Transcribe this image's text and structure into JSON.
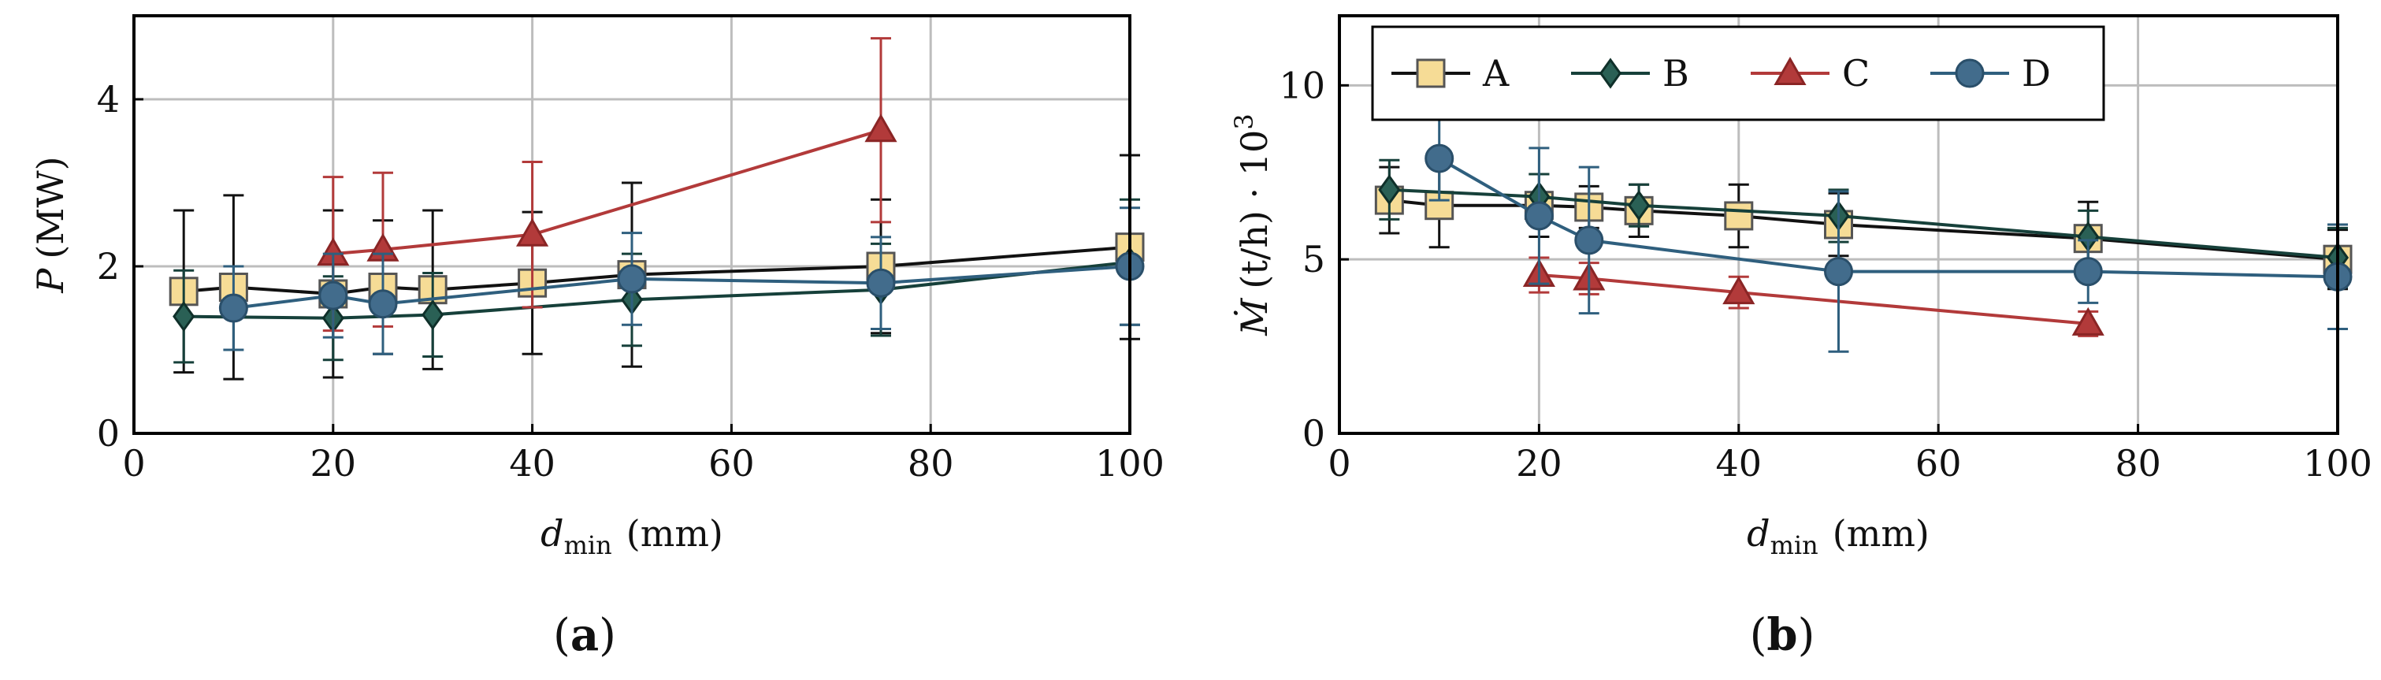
{
  "chart_data": [
    {
      "panel": "(a)",
      "panel_letter": "a",
      "type": "line",
      "xlabel": {
        "var": "d",
        "sub": "min",
        "unit": "(mm)"
      },
      "ylabel": {
        "var": "P",
        "unit": "(MW)"
      },
      "xlim": [
        0,
        100
      ],
      "ylim": [
        0,
        5
      ],
      "xticks": [
        0,
        20,
        40,
        60,
        80,
        100
      ],
      "yticks": [
        0,
        2,
        4
      ],
      "grid": true,
      "legend": false,
      "series": [
        {
          "name": "A",
          "x": [
            5,
            10,
            20,
            25,
            30,
            40,
            50,
            75,
            100
          ],
          "y": [
            1.7,
            1.75,
            1.67,
            1.75,
            1.72,
            1.8,
            1.9,
            2.0,
            2.23
          ],
          "err": [
            0.97,
            1.1,
            1.0,
            0.8,
            0.95,
            0.85,
            1.1,
            0.8,
            1.1
          ]
        },
        {
          "name": "B",
          "x": [
            5,
            20,
            30,
            50,
            75,
            100
          ],
          "y": [
            1.4,
            1.38,
            1.42,
            1.6,
            1.72,
            2.05
          ],
          "err": [
            0.55,
            0.5,
            0.5,
            0.55,
            0.55,
            0.75
          ]
        },
        {
          "name": "C",
          "x": [
            20,
            25,
            40,
            75
          ],
          "y": [
            2.15,
            2.2,
            2.38,
            3.63
          ],
          "err": [
            0.92,
            0.92,
            0.87,
            1.1
          ]
        },
        {
          "name": "D",
          "x": [
            10,
            20,
            25,
            50,
            75,
            100
          ],
          "y": [
            1.5,
            1.65,
            1.55,
            1.85,
            1.8,
            2.0
          ],
          "err": [
            0.5,
            0.5,
            0.6,
            0.55,
            0.55,
            0.7
          ]
        }
      ]
    },
    {
      "panel": "(b)",
      "panel_letter": "b",
      "type": "line",
      "xlabel": {
        "var": "d",
        "sub": "min",
        "unit": "(mm)"
      },
      "ylabel": {
        "var": "Ṁ",
        "unit": "(t/h) · 10",
        "exp": "3"
      },
      "xlim": [
        0,
        100
      ],
      "ylim": [
        0,
        12
      ],
      "xticks": [
        0,
        20,
        40,
        60,
        80,
        100
      ],
      "yticks": [
        0,
        5,
        10
      ],
      "grid": true,
      "legend": true,
      "legend_position": "top",
      "series": [
        {
          "name": "A",
          "x": [
            5,
            10,
            20,
            25,
            30,
            40,
            50,
            75,
            100
          ],
          "y": [
            6.7,
            6.55,
            6.55,
            6.5,
            6.4,
            6.25,
            6.0,
            5.6,
            5.0
          ],
          "err": [
            0.95,
            1.2,
            0.9,
            0.6,
            0.75,
            0.9,
            0.9,
            1.05,
            0.85
          ]
        },
        {
          "name": "B",
          "x": [
            5,
            20,
            30,
            50,
            75,
            100
          ],
          "y": [
            7.0,
            6.8,
            6.55,
            6.25,
            5.65,
            5.05
          ],
          "err": [
            0.85,
            0.65,
            0.6,
            0.75,
            0.75,
            0.85
          ]
        },
        {
          "name": "C",
          "x": [
            20,
            25,
            40,
            75
          ],
          "y": [
            4.55,
            4.45,
            4.05,
            3.15
          ],
          "err": [
            0.5,
            0.45,
            0.45,
            0.35
          ]
        },
        {
          "name": "D",
          "x": [
            10,
            20,
            25,
            50,
            75,
            100
          ],
          "y": [
            7.9,
            6.25,
            5.55,
            4.65,
            4.65,
            4.5
          ],
          "err": [
            1.2,
            1.95,
            2.1,
            2.3,
            0.9,
            1.5
          ]
        }
      ]
    }
  ],
  "legend_items": [
    {
      "label": "A"
    },
    {
      "label": "B"
    },
    {
      "label": "C"
    },
    {
      "label": "D"
    }
  ],
  "colors": {
    "A_line": "#111111",
    "A_fill": "#f6dc96",
    "A_stroke": "#555555",
    "B_line": "#16403a",
    "B_fill": "#2a6055",
    "B_stroke": "#0f302a",
    "C_line": "#b23a3a",
    "C_fill": "#b23a3a",
    "C_stroke": "#8a2525",
    "D_line": "#2f5f7e",
    "D_fill": "#426c8c",
    "D_stroke": "#2a4f6a",
    "grid": "#bdbdbd",
    "axis": "#000000"
  }
}
